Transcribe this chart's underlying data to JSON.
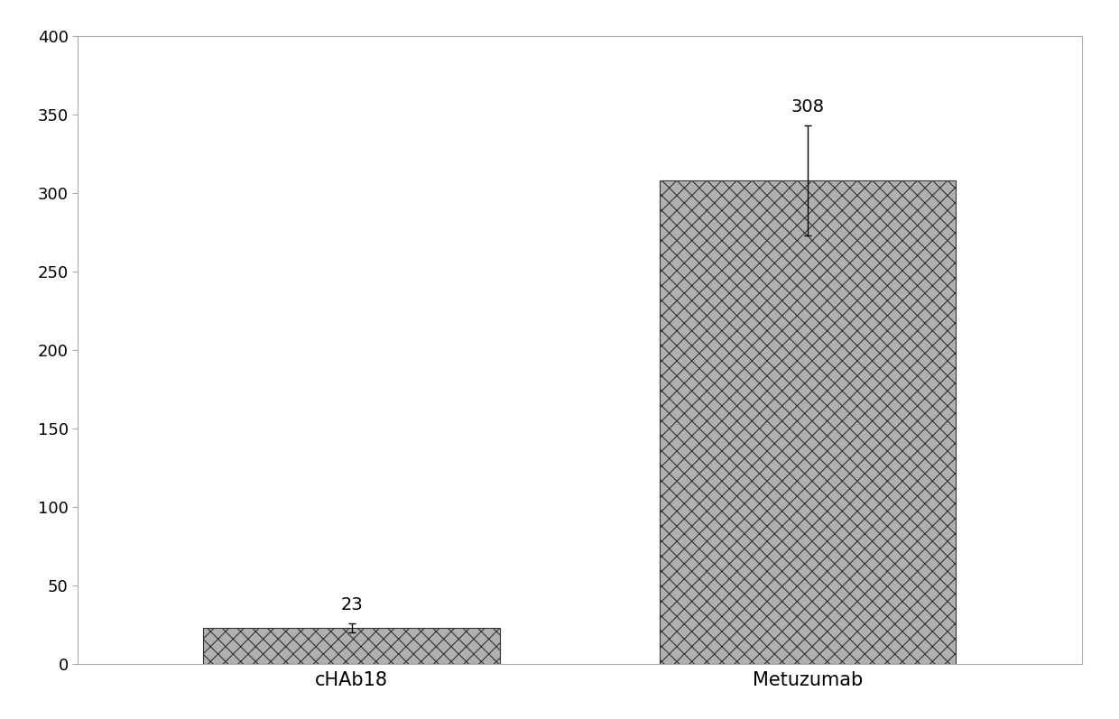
{
  "categories": [
    "cHAb18",
    "Metuzumab"
  ],
  "values": [
    23,
    308
  ],
  "errors_up": [
    3,
    35
  ],
  "errors_down": [
    3,
    35
  ],
  "bar_color": "#b0b0b0",
  "bar_hatch": "xx",
  "bar_edgecolor": "#333333",
  "title": "",
  "xlabel": "",
  "ylabel": "",
  "ylim": [
    0,
    400
  ],
  "yticks": [
    0,
    50,
    100,
    150,
    200,
    250,
    300,
    350,
    400
  ],
  "bar_labels": [
    "23",
    "308"
  ],
  "label_fontsize": 14,
  "tick_fontsize": 13,
  "xtick_fontsize": 15,
  "background_color": "#ffffff",
  "figure_background": "#ffffff",
  "bar_width": 0.65,
  "spine_color": "#aaaaaa",
  "outer_border_color": "#aaaaaa"
}
